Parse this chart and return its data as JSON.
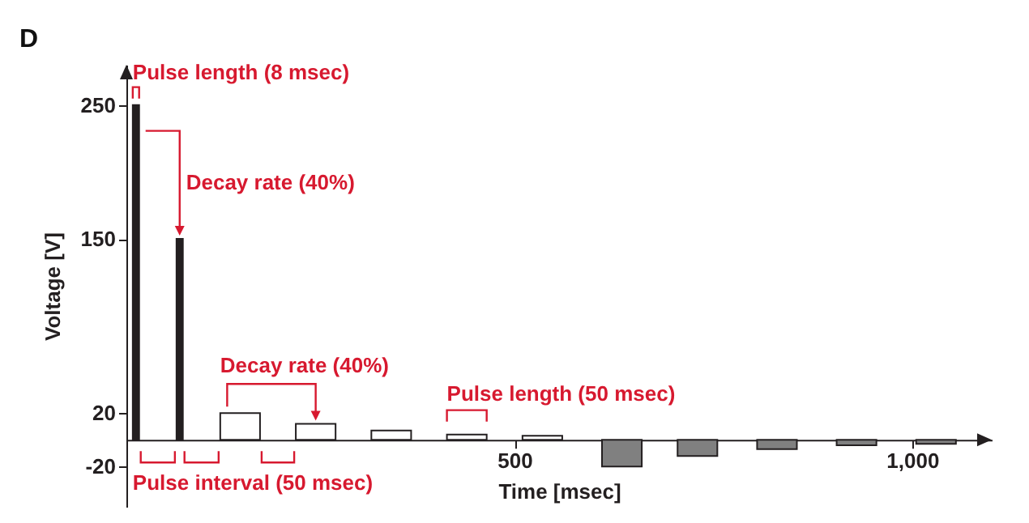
{
  "chart_data": {
    "type": "histogram",
    "title": "D",
    "xlabel": "Time [msec]",
    "ylabel": "Voltage [V]",
    "bins": [
      20,
      28,
      75,
      83,
      130,
      180,
      225,
      275,
      320,
      370,
      415,
      465,
      510,
      560,
      610,
      660,
      705,
      755,
      805,
      855,
      905,
      955,
      1005,
      1055
    ],
    "values": [
      250,
      null,
      150,
      null,
      20,
      null,
      12,
      null,
      7,
      null,
      4,
      null,
      3,
      null,
      -20,
      null,
      -12,
      null,
      -7,
      null,
      -4,
      null,
      -3
    ],
    "colors": [
      "#231f20",
      null,
      "#231f20",
      null,
      "#ffffff",
      null,
      "#ffffff",
      null,
      "#ffffff",
      null,
      "#ffffff",
      null,
      "#ffffff",
      null,
      "#808080",
      null,
      "#808080",
      null,
      "#808080",
      null,
      "#808080",
      null,
      "#808080"
    ],
    "xlim": [
      12,
      1100
    ],
    "ylim": [
      -50,
      280
    ],
    "xticks": [
      500,
      {
        "value": 1000,
        "label": "1,000"
      }
    ],
    "yticks": [
      -20,
      20,
      150,
      250
    ],
    "annotations": [
      "Pulse length (8 msec)",
      "Decay rate (40%)",
      "Decay rate (40%)",
      "Pulse interval (50 msec)",
      "Pulse length (50 msec)"
    ],
    "grid": false,
    "legend": false
  }
}
